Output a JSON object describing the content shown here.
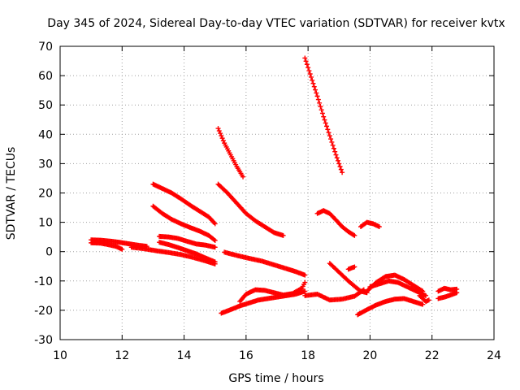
{
  "chart_data": {
    "type": "scatter",
    "title": "Day 345 of 2024, Sidereal Day-to-day VTEC variation (SDTVAR) for receiver kvtx",
    "xlabel": "GPS time / hours",
    "ylabel": "SDTVAR / TECUs",
    "xlim": [
      10,
      24
    ],
    "ylim": [
      -30,
      70
    ],
    "xticks": [
      10,
      12,
      14,
      16,
      18,
      20,
      22,
      24
    ],
    "yticks": [
      -30,
      -20,
      -10,
      0,
      10,
      20,
      30,
      40,
      50,
      60,
      70
    ],
    "grid": true,
    "legend": "none",
    "marker": "plus",
    "color": "#ff0000",
    "series": [
      {
        "x": [
          11.0,
          11.3,
          11.6,
          11.9,
          12.2,
          12.5,
          12.8
        ],
        "y": [
          4.0,
          3.9,
          3.6,
          3.2,
          2.7,
          2.2,
          1.8
        ]
      },
      {
        "x": [
          11.0,
          11.3,
          11.5,
          11.8,
          12.0
        ],
        "y": [
          3.0,
          2.9,
          2.5,
          1.8,
          0.8
        ]
      },
      {
        "x": [
          12.3,
          12.7,
          13.1,
          13.5,
          13.9,
          14.3,
          14.7,
          15.0
        ],
        "y": [
          1.5,
          1.0,
          0.3,
          -0.3,
          -1.0,
          -2.0,
          -3.2,
          -4.2
        ]
      },
      {
        "x": [
          13.0,
          13.3,
          13.6,
          13.9,
          14.2,
          14.5,
          14.8,
          15.0
        ],
        "y": [
          23.0,
          21.5,
          20.0,
          18.0,
          15.8,
          13.8,
          11.8,
          9.5
        ]
      },
      {
        "x": [
          13.0,
          13.3,
          13.6,
          13.9,
          14.2,
          14.5,
          14.8,
          15.0
        ],
        "y": [
          15.5,
          13.0,
          11.0,
          9.5,
          8.2,
          7.0,
          5.5,
          3.8
        ]
      },
      {
        "x": [
          13.2,
          13.5,
          13.8,
          14.1,
          14.4,
          14.7,
          15.0
        ],
        "y": [
          5.2,
          5.0,
          4.5,
          3.5,
          2.6,
          2.2,
          1.5
        ]
      },
      {
        "x": [
          13.2,
          13.5,
          13.8,
          14.1,
          14.4,
          14.7,
          15.0
        ],
        "y": [
          3.2,
          2.4,
          1.4,
          0.3,
          -0.8,
          -2.2,
          -3.5
        ]
      },
      {
        "x": [
          15.1,
          15.3,
          15.5,
          15.7,
          15.9
        ],
        "y": [
          42.0,
          37.0,
          33.0,
          29.0,
          25.5
        ]
      },
      {
        "x": [
          15.1,
          15.4,
          15.7,
          16.0,
          16.3,
          16.6,
          16.9,
          17.2
        ],
        "y": [
          23.0,
          20.0,
          16.5,
          13.0,
          10.5,
          8.5,
          6.5,
          5.5
        ]
      },
      {
        "x": [
          15.3,
          15.7,
          16.1,
          16.5,
          16.9,
          17.3,
          17.6,
          17.9
        ],
        "y": [
          -0.2,
          -1.3,
          -2.3,
          -3.2,
          -4.5,
          -5.8,
          -6.8,
          -8.0
        ]
      },
      {
        "x": [
          15.2,
          15.5,
          15.8,
          16.1,
          16.4,
          16.7,
          17.0,
          17.3,
          17.6,
          17.9
        ],
        "y": [
          -21.0,
          -19.8,
          -18.5,
          -17.5,
          -16.5,
          -16.0,
          -15.5,
          -15.0,
          -14.5,
          -13.5
        ]
      },
      {
        "x": [
          15.8,
          16.0,
          16.3,
          16.6,
          16.9,
          17.2,
          17.5,
          17.8,
          17.9
        ],
        "y": [
          -17.0,
          -14.5,
          -13.0,
          -13.2,
          -14.0,
          -14.8,
          -14.3,
          -12.5,
          -10.5
        ]
      },
      {
        "x": [
          17.9,
          18.1,
          18.3,
          18.5,
          18.7,
          18.9,
          19.1
        ],
        "y": [
          66.0,
          59.5,
          53.0,
          46.0,
          39.5,
          33.0,
          27.0
        ]
      },
      {
        "x": [
          17.9,
          18.3,
          18.7,
          19.1,
          19.5,
          19.8
        ],
        "y": [
          -15.0,
          -14.5,
          -16.5,
          -16.2,
          -15.2,
          -13.0
        ]
      },
      {
        "x": [
          18.3,
          18.5,
          18.7,
          18.9,
          19.1,
          19.3,
          19.5
        ],
        "y": [
          13.0,
          14.0,
          13.0,
          10.8,
          8.5,
          6.8,
          5.5
        ]
      },
      {
        "x": [
          18.7,
          18.9,
          19.1,
          19.3,
          19.5,
          19.7,
          19.9
        ],
        "y": [
          -4.0,
          -6.0,
          -8.0,
          -10.0,
          -11.8,
          -13.5,
          -14.0
        ]
      },
      {
        "x": [
          19.3,
          19.5
        ],
        "y": [
          -6.0,
          -5.2
        ]
      },
      {
        "x": [
          19.7,
          19.9,
          20.1,
          20.3
        ],
        "y": [
          8.5,
          10.0,
          9.5,
          8.5
        ]
      },
      {
        "x": [
          19.9,
          20.2,
          20.5,
          20.8,
          21.1,
          21.4,
          21.7
        ],
        "y": [
          -13.5,
          -10.5,
          -8.5,
          -8.0,
          -9.5,
          -11.5,
          -13.5
        ]
      },
      {
        "x": [
          20.0,
          20.3,
          20.6,
          20.9,
          21.2,
          21.5,
          21.8
        ],
        "y": [
          -12.0,
          -11.0,
          -10.0,
          -10.5,
          -12.0,
          -13.5,
          -15.0
        ]
      },
      {
        "x": [
          19.6,
          19.9,
          20.2,
          20.5,
          20.8,
          21.1,
          21.4,
          21.7
        ],
        "y": [
          -21.5,
          -19.8,
          -18.2,
          -17.0,
          -16.2,
          -16.0,
          -17.0,
          -18.0
        ]
      },
      {
        "x": [
          21.6,
          21.7,
          21.8,
          21.9
        ],
        "y": [
          -15.0,
          -16.0,
          -17.0,
          -16.5
        ]
      },
      {
        "x": [
          22.2,
          22.4,
          22.6,
          22.8
        ],
        "y": [
          -13.5,
          -12.5,
          -13.0,
          -12.8
        ]
      },
      {
        "x": [
          22.2,
          22.4,
          22.6,
          22.8
        ],
        "y": [
          -16.0,
          -15.5,
          -14.8,
          -14.0
        ]
      }
    ]
  }
}
